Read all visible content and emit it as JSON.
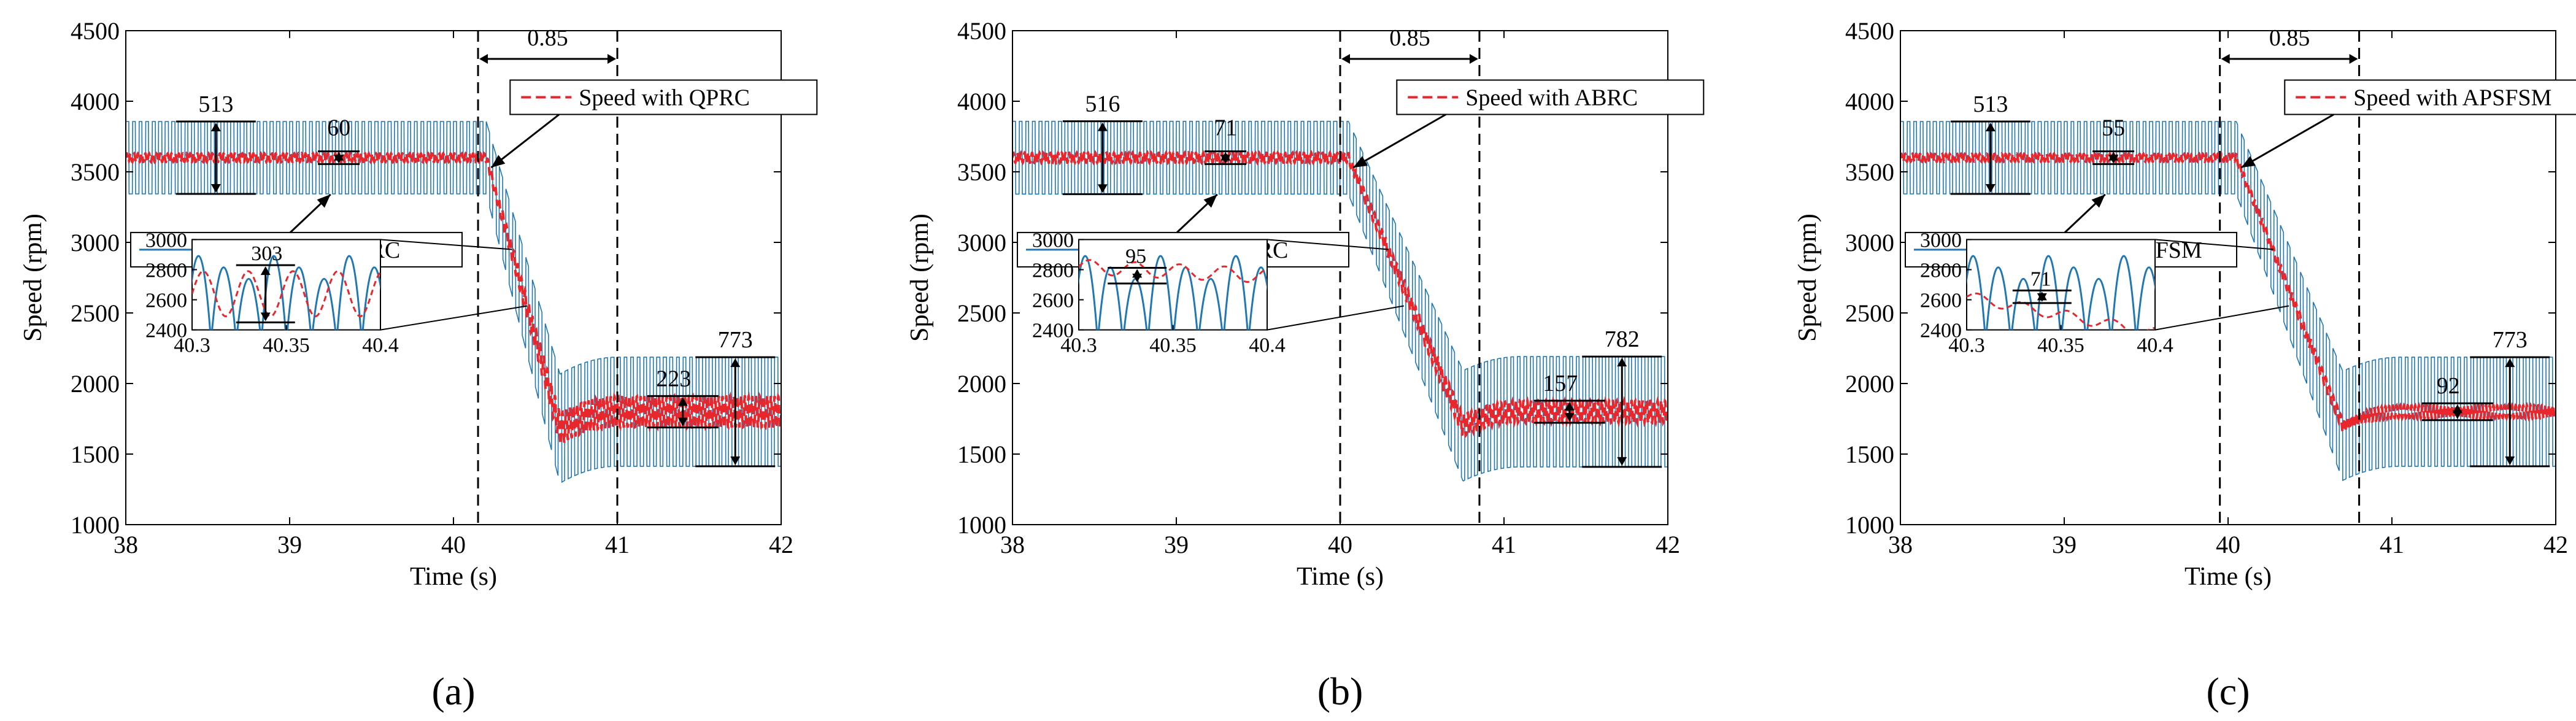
{
  "colors": {
    "blue": "#1f77b4",
    "red": "#e8262b",
    "black": "#000000"
  },
  "chart_data": [
    {
      "type": "line",
      "panel_label": "(a)",
      "xlabel": "Time (s)",
      "ylabel": "Speed (rpm)",
      "xlim": [
        38,
        42
      ],
      "ylim": [
        1000,
        4500
      ],
      "xticks": [
        38,
        39,
        40,
        41,
        42
      ],
      "yticks": [
        1000,
        1500,
        2000,
        2500,
        3000,
        3500,
        4000,
        4500
      ],
      "grid": false,
      "legend": [
        {
          "name": "Speed with QPRC",
          "style": "dashed",
          "color": "red"
        },
        {
          "name": "Speed without QPRC",
          "style": "solid",
          "color": "blue"
        }
      ],
      "series": {
        "without": {
          "start_mean": 3600,
          "start_pp": 513,
          "ramp_start": 40.2,
          "ramp_end": 40.65,
          "undershoot": 1680,
          "end_mean": 1800,
          "end_pp": 773
        },
        "with": {
          "start_mean": 3600,
          "start_pp": 60,
          "end_pp": 223
        }
      },
      "annotations": {
        "start_pp_without": "513",
        "start_pp_with": "60",
        "end_pp_with": "223",
        "end_pp_without": "773",
        "interval_label": "0.85",
        "interval": [
          40.15,
          41.0
        ],
        "inset_label": "303"
      },
      "inset": {
        "xlim": [
          40.3,
          40.4
        ],
        "ylim": [
          2400,
          3000
        ],
        "xticks": [
          40.3,
          40.35,
          40.4
        ],
        "xtick_labels": [
          "40.3",
          "40.35",
          "40.4"
        ],
        "yticks": [
          2400,
          2600,
          2800,
          3000
        ],
        "red_amp": 150,
        "marker": {
          "x": 40.339,
          "y": 2640
        }
      }
    },
    {
      "type": "line",
      "panel_label": "(b)",
      "xlabel": "Time (s)",
      "ylabel": "Speed (rpm)",
      "xlim": [
        38,
        42
      ],
      "ylim": [
        1000,
        4500
      ],
      "xticks": [
        38,
        39,
        40,
        41,
        42
      ],
      "yticks": [
        1000,
        1500,
        2000,
        2500,
        3000,
        3500,
        4000,
        4500
      ],
      "grid": false,
      "legend": [
        {
          "name": "Speed with ABRC",
          "style": "dashed",
          "color": "red"
        },
        {
          "name": "Speed without ABRC",
          "style": "solid",
          "color": "blue"
        }
      ],
      "series": {
        "without": {
          "start_mean": 3600,
          "start_pp": 516,
          "ramp_start": 40.05,
          "ramp_end": 40.75,
          "undershoot": 1700,
          "end_mean": 1800,
          "end_pp": 782
        },
        "with": {
          "start_mean": 3600,
          "start_pp": 71,
          "end_pp": 157
        }
      },
      "annotations": {
        "start_pp_without": "516",
        "start_pp_with": "71",
        "end_pp_with": "157",
        "end_pp_without": "782",
        "interval_label": "0.85",
        "interval": [
          40.0,
          40.85
        ],
        "inset_label": "95"
      },
      "inset": {
        "xlim": [
          40.3,
          40.4
        ],
        "ylim": [
          2400,
          3000
        ],
        "xticks": [
          40.3,
          40.35,
          40.4
        ],
        "xtick_labels": [
          "40.3",
          "40.35",
          "40.4"
        ],
        "yticks": [
          2400,
          2600,
          2800,
          3000
        ],
        "red_amp": 48,
        "marker": {
          "x": 40.331,
          "y": 2760
        }
      }
    },
    {
      "type": "line",
      "panel_label": "(c)",
      "xlabel": "Time (s)",
      "ylabel": "Speed (rpm)",
      "xlim": [
        38,
        42
      ],
      "ylim": [
        1000,
        4500
      ],
      "xticks": [
        38,
        39,
        40,
        41,
        42
      ],
      "yticks": [
        1000,
        1500,
        2000,
        2500,
        3000,
        3500,
        4000,
        4500
      ],
      "grid": false,
      "legend": [
        {
          "name": "Speed with APSFSM",
          "style": "dashed",
          "color": "red"
        },
        {
          "name": "Speed without APSFSM",
          "style": "solid",
          "color": "blue"
        }
      ],
      "series": {
        "without": {
          "start_mean": 3600,
          "start_pp": 513,
          "ramp_start": 40.05,
          "ramp_end": 40.7,
          "undershoot": 1700,
          "end_mean": 1800,
          "end_pp": 773
        },
        "with": {
          "start_mean": 3600,
          "start_pp": 55,
          "end_pp": 92
        }
      },
      "annotations": {
        "start_pp_without": "513",
        "start_pp_with": "55",
        "end_pp_with": "92",
        "end_pp_without": "773",
        "interval_label": "0.85",
        "interval": [
          39.95,
          40.8
        ],
        "inset_label": "71"
      },
      "inset": {
        "xlim": [
          40.3,
          40.4
        ],
        "ylim": [
          2400,
          3000
        ],
        "xticks": [
          40.3,
          40.35,
          40.4
        ],
        "xtick_labels": [
          "40.3",
          "40.35",
          "40.4"
        ],
        "yticks": [
          2400,
          2600,
          2800,
          3000
        ],
        "red_amp": 35,
        "marker": {
          "x": 40.34,
          "y": 2620
        }
      }
    }
  ]
}
